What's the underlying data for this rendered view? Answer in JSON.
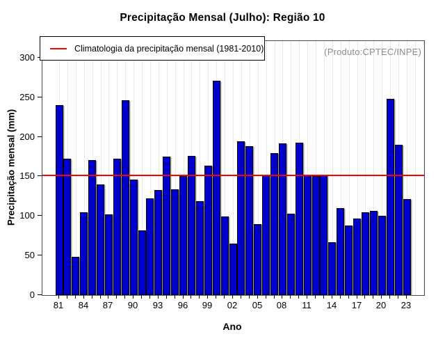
{
  "chart_data": {
    "type": "bar",
    "title": "Precipitação Mensal (Julho): Região 10",
    "xlabel": "Ano",
    "ylabel": "Precipitação mensal (mm)",
    "watermark": "(Produto:CPTEC/INPE)",
    "legend": {
      "label": "Climatologia da precipitação mensal (1981-2010)",
      "line_color": "#ff0000",
      "position": "top-left"
    },
    "ylim": [
      0,
      321
    ],
    "yticks": [
      0,
      50,
      100,
      150,
      200,
      250,
      300
    ],
    "categories": [
      1981,
      1982,
      1983,
      1984,
      1985,
      1986,
      1987,
      1988,
      1989,
      1990,
      1991,
      1992,
      1993,
      1994,
      1995,
      1996,
      1997,
      1998,
      1999,
      2000,
      2001,
      2002,
      2003,
      2004,
      2005,
      2006,
      2007,
      2008,
      2009,
      2010,
      2011,
      2012,
      2013,
      2014,
      2015,
      2016,
      2017,
      2018,
      2019,
      2020,
      2021,
      2022,
      2023
    ],
    "values": [
      240,
      172,
      48,
      105,
      171,
      140,
      102,
      172,
      246,
      146,
      82,
      122,
      133,
      175,
      134,
      150,
      176,
      119,
      164,
      271,
      99,
      65,
      194,
      188,
      90,
      152,
      179,
      192,
      103,
      193,
      152,
      150,
      152,
      67,
      110,
      88,
      97,
      105,
      106,
      100,
      248,
      190,
      121
    ],
    "x_tick_labels": [
      "81",
      "84",
      "87",
      "90",
      "93",
      "96",
      "99",
      "02",
      "05",
      "08",
      "11",
      "14",
      "17",
      "20",
      "23"
    ],
    "x_tick_label_step": 3,
    "climatology_value": 151,
    "bar_color": "#0000cd",
    "bar_border_color": "#000000",
    "grid": "vertical-dotted"
  }
}
